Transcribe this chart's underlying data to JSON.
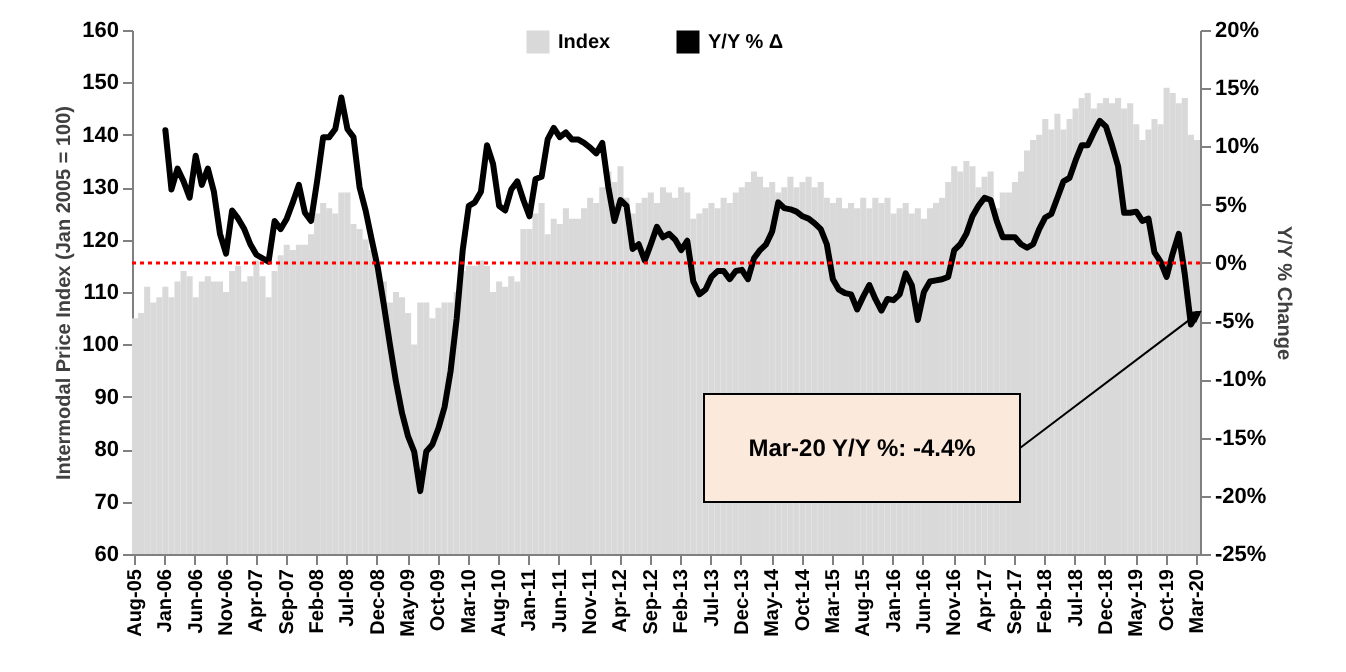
{
  "chart_data": {
    "type": "bar",
    "ylabel": "Intermodal Price Index (Jan 2005 = 100)",
    "y2label": "Y/Y % Change",
    "categories": [
      "Aug-05",
      null,
      null,
      null,
      null,
      "Jan-06",
      null,
      null,
      null,
      null,
      "Jun-06",
      null,
      null,
      null,
      null,
      "Nov-06",
      null,
      null,
      null,
      null,
      "Apr-07",
      null,
      null,
      null,
      null,
      "Sep-07",
      null,
      null,
      null,
      null,
      "Feb-08",
      null,
      null,
      null,
      null,
      "Jul-08",
      null,
      null,
      null,
      null,
      "Dec-08",
      null,
      null,
      null,
      null,
      "May-09",
      null,
      null,
      null,
      null,
      "Oct-09",
      null,
      null,
      null,
      null,
      "Mar-10",
      null,
      null,
      null,
      null,
      "Aug-10",
      null,
      null,
      null,
      null,
      "Jan-11",
      null,
      null,
      null,
      null,
      "Jun-11",
      null,
      null,
      null,
      null,
      "Nov-11",
      null,
      null,
      null,
      null,
      "Apr-12",
      null,
      null,
      null,
      null,
      "Sep-12",
      null,
      null,
      null,
      null,
      "Feb-13",
      null,
      null,
      null,
      null,
      "Jul-13",
      null,
      null,
      null,
      null,
      "Dec-13",
      null,
      null,
      null,
      null,
      "May-14",
      null,
      null,
      null,
      null,
      "Oct-14",
      null,
      null,
      null,
      null,
      "Mar-15",
      null,
      null,
      null,
      null,
      "Aug-15",
      null,
      null,
      null,
      null,
      "Jan-16",
      null,
      null,
      null,
      null,
      "Jun-16",
      null,
      null,
      null,
      null,
      "Nov-16",
      null,
      null,
      null,
      null,
      "Apr-17",
      null,
      null,
      null,
      null,
      "Sep-17",
      null,
      null,
      null,
      null,
      "Feb-18",
      null,
      null,
      null,
      null,
      "Jul-18",
      null,
      null,
      null,
      null,
      "Dec-18",
      null,
      null,
      null,
      null,
      "May-19",
      null,
      null,
      null,
      null,
      "Oct-19",
      null,
      null,
      null,
      null,
      "Mar-20"
    ],
    "series": [
      {
        "name": "Index",
        "color": "#d9d9d9",
        "values": [
          105,
          106,
          111,
          108,
          109,
          111,
          109,
          112,
          114,
          113,
          109,
          112,
          113,
          112,
          112,
          110,
          114,
          115,
          112,
          113,
          116,
          113,
          109,
          114,
          117,
          119,
          118,
          119,
          119,
          121,
          125,
          127,
          126,
          125,
          129,
          129,
          123,
          122,
          120,
          118,
          115,
          112,
          108,
          110,
          109,
          106,
          100,
          108,
          108,
          105,
          107,
          108,
          108,
          110,
          114,
          115,
          115,
          116,
          115,
          110,
          112,
          111,
          113,
          112,
          122,
          122,
          125,
          127,
          121,
          124,
          123,
          126,
          124,
          124,
          126,
          128,
          127,
          130,
          133,
          131,
          134,
          128,
          125,
          127,
          128,
          129,
          127,
          130,
          129,
          128,
          130,
          129,
          124,
          125,
          126,
          127,
          126,
          128,
          127,
          129,
          130,
          131,
          133,
          132,
          130,
          131,
          129,
          130,
          132,
          130,
          131,
          132,
          130,
          131,
          128,
          127,
          128,
          126,
          127,
          126,
          128,
          126,
          128,
          127,
          128,
          125,
          126,
          127,
          125,
          126,
          124,
          126,
          127,
          128,
          131,
          134,
          133,
          135,
          134,
          130,
          132,
          133,
          126,
          129,
          129,
          131,
          133,
          137,
          139,
          140,
          143,
          141,
          144,
          141,
          143,
          145,
          147,
          148,
          145,
          146,
          147,
          146,
          147,
          145,
          146,
          142,
          139,
          141,
          143,
          142,
          149,
          148,
          146,
          147,
          140,
          139
        ]
      },
      {
        "name": "Y/Y % Δ",
        "type": "line",
        "axis": "y2",
        "color": "#000000",
        "values": [
          null,
          null,
          null,
          null,
          null,
          11.4,
          6.3,
          8.1,
          7.0,
          5.6,
          9.2,
          6.7,
          8.1,
          6.1,
          2.5,
          0.8,
          4.5,
          3.8,
          2.9,
          1.6,
          0.7,
          0.4,
          0.1,
          3.6,
          2.9,
          3.8,
          5.2,
          6.7,
          4.3,
          3.6,
          7.0,
          10.8,
          10.8,
          11.5,
          14.2,
          11.5,
          10.8,
          6.5,
          4.5,
          2.0,
          -0.4,
          -3.6,
          -7.0,
          -10.2,
          -12.9,
          -14.9,
          -16.2,
          -19.6,
          -16.2,
          -15.6,
          -14.2,
          -12.4,
          -9.3,
          -4.8,
          1.1,
          4.9,
          5.2,
          6.1,
          10.1,
          8.5,
          4.9,
          4.5,
          6.3,
          7.0,
          5.4,
          4.0,
          7.2,
          7.4,
          10.6,
          11.6,
          10.8,
          11.2,
          10.6,
          10.6,
          10.3,
          9.9,
          9.4,
          10.3,
          6.5,
          3.6,
          5.4,
          4.9,
          1.2,
          1.6,
          0.2,
          1.6,
          3.1,
          2.2,
          2.5,
          2.0,
          1.1,
          1.9,
          -1.6,
          -2.7,
          -2.3,
          -1.2,
          -0.7,
          -0.7,
          -1.4,
          -0.7,
          -0.6,
          -1.4,
          0.4,
          1.1,
          1.6,
          2.7,
          5.2,
          4.7,
          4.6,
          4.4,
          4.0,
          3.8,
          3.4,
          2.9,
          1.6,
          -1.4,
          -2.3,
          -2.6,
          -2.7,
          -4.0,
          -2.9,
          -1.9,
          -3.1,
          -4.1,
          -3.1,
          -3.2,
          -2.7,
          -0.9,
          -1.9,
          -4.9,
          -2.5,
          -1.6,
          -1.5,
          -1.4,
          -1.2,
          1.1,
          1.6,
          2.5,
          4.0,
          4.9,
          5.6,
          5.4,
          3.6,
          2.2,
          2.2,
          2.2,
          1.6,
          1.3,
          1.6,
          2.9,
          3.9,
          4.2,
          5.6,
          7.0,
          7.3,
          8.8,
          10.1,
          10.1,
          11.2,
          12.2,
          11.7,
          10.1,
          8.3,
          4.3,
          4.3,
          4.4,
          3.6,
          3.8,
          0.9,
          0.1,
          -1.2,
          0.8,
          2.5,
          -1.0,
          -5.3,
          -4.4
        ]
      }
    ],
    "ylim": [
      60,
      160
    ],
    "yticks": [
      60,
      70,
      80,
      90,
      100,
      110,
      120,
      130,
      140,
      150,
      160
    ],
    "y2lim": [
      -25,
      20
    ],
    "y2ticks": [
      {
        "value": -25,
        "label": "-25%"
      },
      {
        "value": -20,
        "label": "-20%"
      },
      {
        "value": -15,
        "label": "-15%"
      },
      {
        "value": -10,
        "label": "-10%"
      },
      {
        "value": -5,
        "label": "-5%"
      },
      {
        "value": 0,
        "label": "0%"
      },
      {
        "value": 5,
        "label": "5%"
      },
      {
        "value": 10,
        "label": "10%"
      },
      {
        "value": 15,
        "label": "15%"
      },
      {
        "value": 20,
        "label": "20%"
      }
    ],
    "ref_lines": [
      {
        "axis": "y2",
        "value": 0,
        "color": "#ff0000",
        "line_style": "dotted"
      }
    ],
    "annotations": [
      "Mar-20 Y/Y %: -4.4%"
    ],
    "legend": "top",
    "grid": false,
    "marker": "none"
  }
}
